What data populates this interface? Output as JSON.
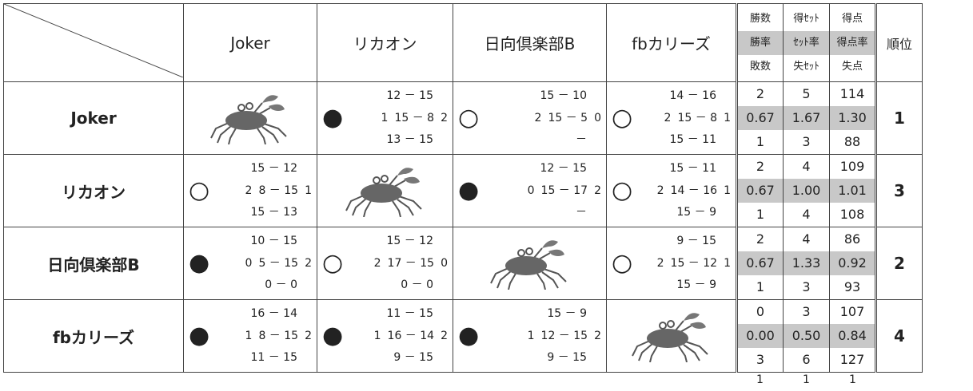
{
  "header": {
    "teams": [
      "Joker",
      "リカオン",
      "日向倶楽部B",
      "fbカリーズ"
    ],
    "stats_labels": [
      [
        "勝数",
        "得ｾｯﾄ",
        "得点"
      ],
      [
        "勝率",
        "ｾｯﾄ率",
        "得点率"
      ],
      [
        "敗数",
        "失ｾｯﾄ",
        "失点"
      ]
    ],
    "rank_label": "順位"
  },
  "rows": [
    {
      "team": "Joker",
      "results": [
        null,
        {
          "mark": "●",
          "won": "1",
          "sets": [
            "12 － 15",
            "15 － 8",
            "13 － 15"
          ],
          "lost": "2"
        },
        {
          "mark": "○",
          "won": "2",
          "sets": [
            "15 － 10",
            "15 － 5",
            "－"
          ],
          "lost": "0"
        },
        {
          "mark": "○",
          "won": "2",
          "sets": [
            "14 － 16",
            "15 － 8",
            "15 － 11"
          ],
          "lost": "1"
        }
      ],
      "stats": [
        [
          "2",
          "5",
          "114"
        ],
        [
          "0.67",
          "1.67",
          "1.30"
        ],
        [
          "1",
          "3",
          "88"
        ]
      ],
      "rank": "1"
    },
    {
      "team": "リカオン",
      "results": [
        {
          "mark": "○",
          "won": "2",
          "sets": [
            "15 － 12",
            "8 － 15",
            "15 － 13"
          ],
          "lost": "1"
        },
        null,
        {
          "mark": "●",
          "won": "0",
          "sets": [
            "12 － 15",
            "15 － 17",
            "－"
          ],
          "lost": "2"
        },
        {
          "mark": "○",
          "won": "2",
          "sets": [
            "15 － 11",
            "14 － 16",
            "15 － 9"
          ],
          "lost": "1"
        }
      ],
      "stats": [
        [
          "2",
          "4",
          "109"
        ],
        [
          "0.67",
          "1.00",
          "1.01"
        ],
        [
          "1",
          "4",
          "108"
        ]
      ],
      "rank": "3"
    },
    {
      "team": "日向倶楽部B",
      "results": [
        {
          "mark": "●",
          "won": "0",
          "sets": [
            "10 － 15",
            "5 － 15",
            "0 － 0"
          ],
          "lost": "2"
        },
        {
          "mark": "○",
          "won": "2",
          "sets": [
            "15 － 12",
            "17 － 15",
            "0 － 0"
          ],
          "lost": "0"
        },
        null,
        {
          "mark": "○",
          "won": "2",
          "sets": [
            "9 － 15",
            "15 － 12",
            "15 － 9"
          ],
          "lost": "1"
        }
      ],
      "stats": [
        [
          "2",
          "4",
          "86"
        ],
        [
          "0.67",
          "1.33",
          "0.92"
        ],
        [
          "1",
          "3",
          "93"
        ]
      ],
      "rank": "2"
    },
    {
      "team": "fbカリーズ",
      "results": [
        {
          "mark": "●",
          "won": "1",
          "sets": [
            "16 － 14",
            "8 － 15",
            "11 － 15"
          ],
          "lost": "2"
        },
        {
          "mark": "●",
          "won": "1",
          "sets": [
            "11 － 15",
            "16 － 14",
            "9 － 15"
          ],
          "lost": "2"
        },
        {
          "mark": "●",
          "won": "1",
          "sets": [
            "15 － 9",
            "12 － 15",
            "9 － 15"
          ],
          "lost": "2"
        },
        null
      ],
      "stats": [
        [
          "0",
          "3",
          "107"
        ],
        [
          "0.00",
          "0.50",
          "0.84"
        ],
        [
          "3",
          "6",
          "127"
        ]
      ],
      "rank": "4"
    }
  ],
  "footer": [
    "1",
    "1",
    "1"
  ]
}
